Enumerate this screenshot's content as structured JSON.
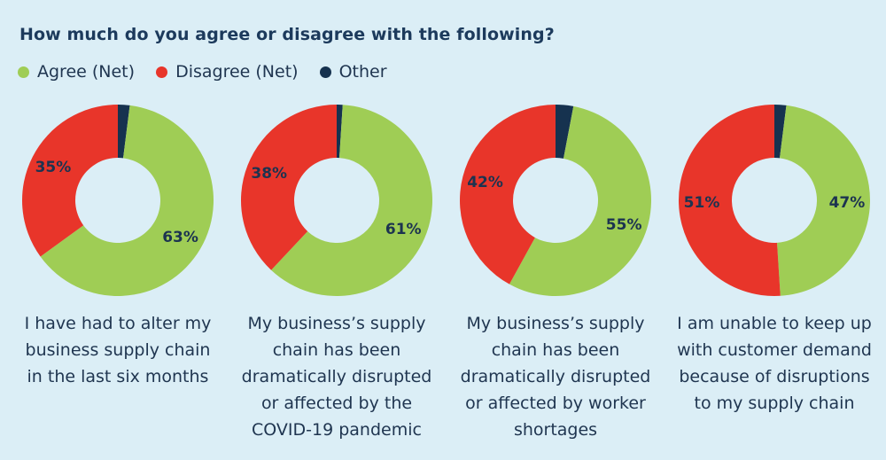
{
  "title": "How much do you agree or disagree with the following?",
  "colors": {
    "agree": "#9fcd55",
    "disagree": "#e8352a",
    "other": "#16324f"
  },
  "legend": [
    {
      "label": "Agree (Net)",
      "color": "#9fcd55"
    },
    {
      "label": "Disagree (Net)",
      "color": "#e8352a"
    },
    {
      "label": "Other",
      "color": "#16324f"
    }
  ],
  "chart_data": [
    {
      "type": "pie",
      "donut": true,
      "caption": [
        "I have had to alter my",
        "business supply chain",
        "in the last six months"
      ],
      "slices": [
        {
          "name": "Agree (Net)",
          "value": 63,
          "label": "63%"
        },
        {
          "name": "Disagree (Net)",
          "value": 35,
          "label": "35%"
        },
        {
          "name": "Other",
          "value": 2,
          "label": ""
        }
      ]
    },
    {
      "type": "pie",
      "donut": true,
      "caption": [
        "My business’s supply",
        "chain has been",
        "dramatically disrupted",
        "or affected by the",
        "COVID-19 pandemic"
      ],
      "slices": [
        {
          "name": "Agree (Net)",
          "value": 61,
          "label": "61%"
        },
        {
          "name": "Disagree (Net)",
          "value": 38,
          "label": "38%"
        },
        {
          "name": "Other",
          "value": 1,
          "label": ""
        }
      ]
    },
    {
      "type": "pie",
      "donut": true,
      "caption": [
        "My business’s supply",
        "chain has been",
        "dramatically disrupted",
        "or affected by worker",
        "shortages"
      ],
      "slices": [
        {
          "name": "Agree (Net)",
          "value": 55,
          "label": "55%"
        },
        {
          "name": "Disagree (Net)",
          "value": 42,
          "label": "42%"
        },
        {
          "name": "Other",
          "value": 3,
          "label": ""
        }
      ]
    },
    {
      "type": "pie",
      "donut": true,
      "caption": [
        "I am unable to keep up",
        "with customer demand",
        "because of disruptions",
        "to my supply chain"
      ],
      "slices": [
        {
          "name": "Agree (Net)",
          "value": 47,
          "label": "47%"
        },
        {
          "name": "Disagree (Net)",
          "value": 51,
          "label": "51%"
        },
        {
          "name": "Other",
          "value": 2,
          "label": ""
        }
      ]
    }
  ]
}
